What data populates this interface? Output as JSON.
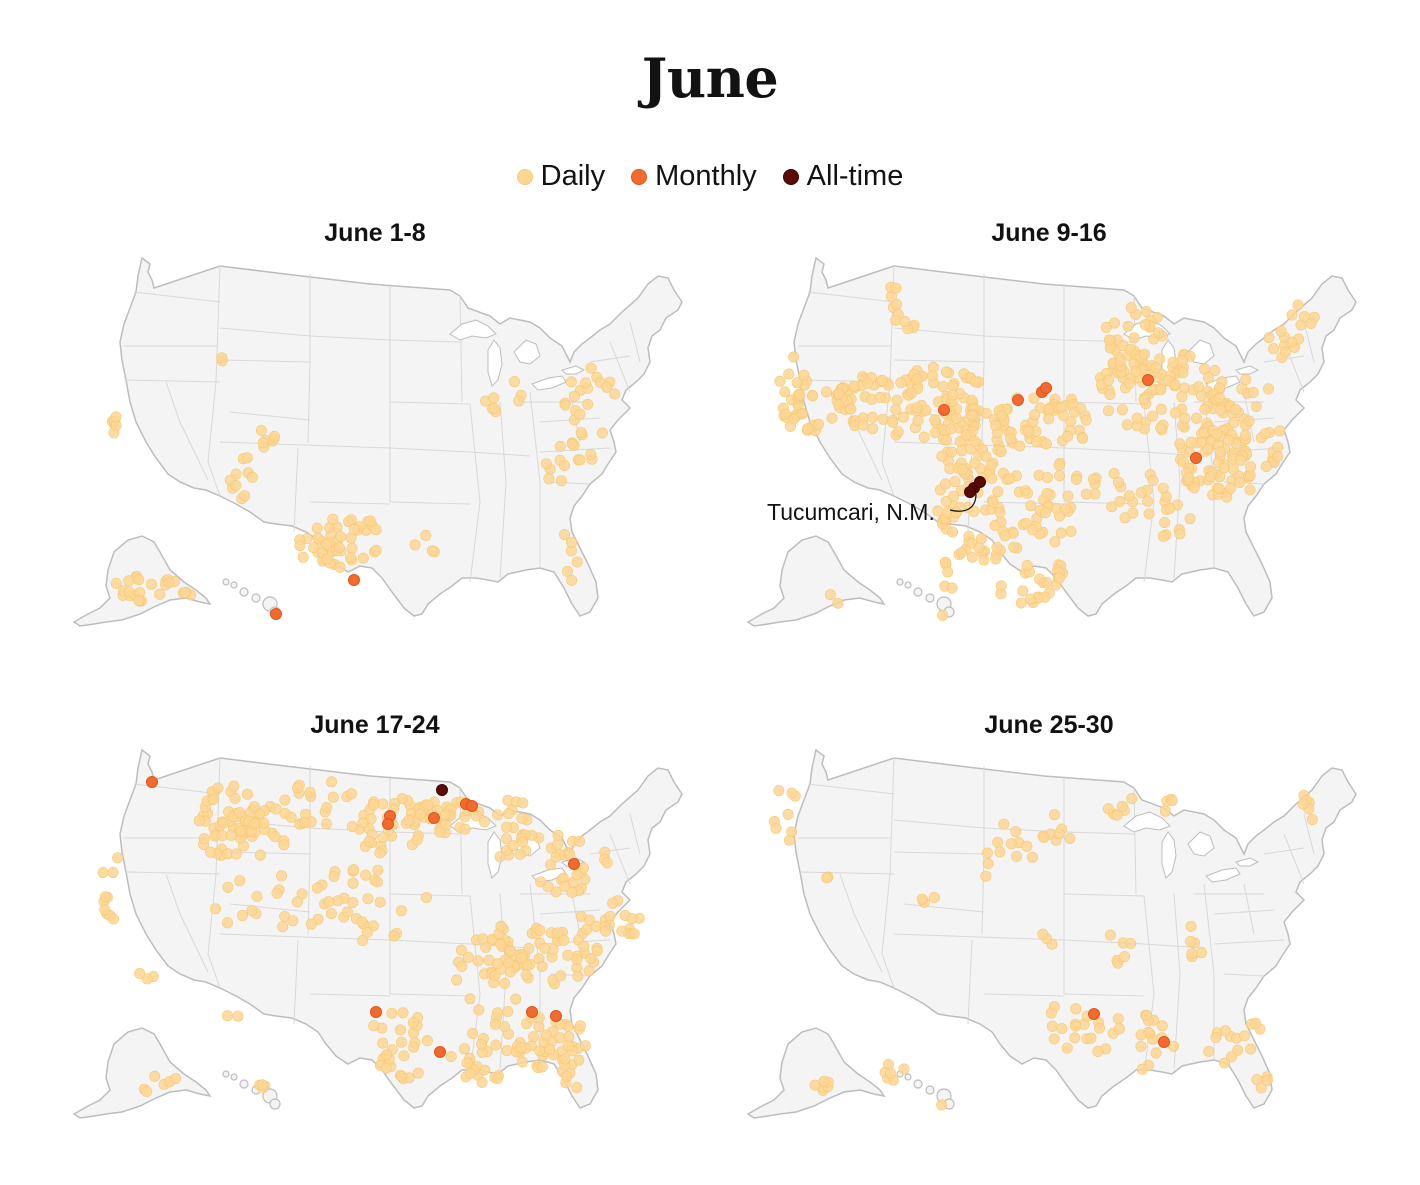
{
  "title": "June",
  "colors": {
    "daily_fill": "#fdd693",
    "daily_stroke": "#f6c877",
    "monthly_fill": "#f26a2d",
    "monthly_stroke": "#e0551b",
    "alltime_fill": "#5c0a04",
    "alltime_stroke": "#3a0503",
    "land": "#f4f4f4",
    "state_border": "#d8d8d8",
    "coast": "#bdbdbd"
  },
  "legend": [
    {
      "label": "Daily",
      "type": "daily"
    },
    {
      "label": "Monthly",
      "type": "monthly"
    },
    {
      "label": "All-time",
      "type": "alltime"
    }
  ],
  "panels": [
    {
      "title": "June 1-8",
      "key": "p1"
    },
    {
      "title": "June 9-16",
      "key": "p2",
      "annotation": "Tucumcari, N.M."
    },
    {
      "title": "June 17-24",
      "key": "p3"
    },
    {
      "title": "June 25-30",
      "key": "p4"
    }
  ]
}
